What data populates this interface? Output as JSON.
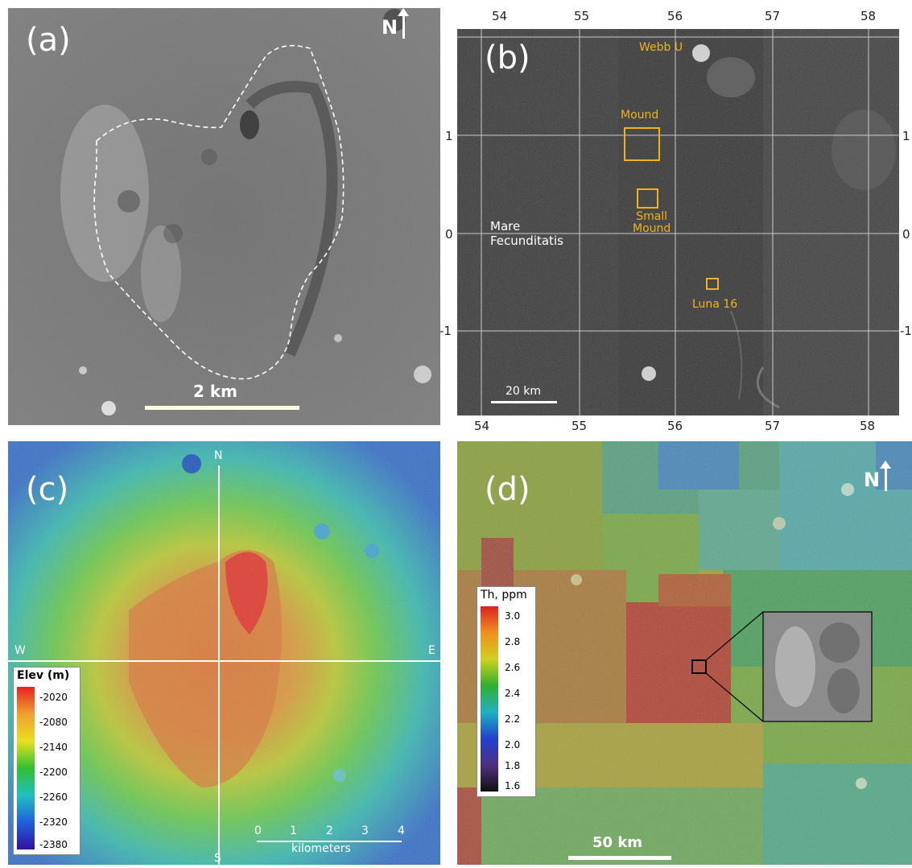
{
  "panel_a": {
    "letter": "(a)",
    "north": "N",
    "scale_label": "2 km",
    "image_kind": "grayscale lunar surface with dashed outline of mound"
  },
  "panel_b": {
    "letter": "(b)",
    "top_ticks": [
      "54",
      "55",
      "56",
      "57",
      "58"
    ],
    "bottom_ticks": [
      "54",
      "55",
      "56",
      "57",
      "58"
    ],
    "left_ticks": [
      "1",
      "0",
      "-1"
    ],
    "right_ticks": [
      "1",
      "0",
      "-1"
    ],
    "labels": {
      "webb": "Webb U",
      "mound": "Mound",
      "small_mound_1": "Small",
      "small_mound_2": "Mound",
      "luna": "Luna 16",
      "mare_1": "Mare",
      "mare_2": "Fecunditatis"
    },
    "scale_label": "20 km"
  },
  "panel_c": {
    "letter": "(c)",
    "dirs": {
      "n": "N",
      "s": "S",
      "w": "W",
      "e": "E"
    },
    "legend_title": "Elev (m)",
    "legend_values": [
      "-2020",
      "-2080",
      "-2140",
      "-2200",
      "-2260",
      "-2320",
      "-2380"
    ],
    "scale_ticks": [
      "0",
      "1",
      "2",
      "3",
      "4"
    ],
    "scale_unit": "kilometers"
  },
  "panel_d": {
    "letter": "(d)",
    "north": "N",
    "legend_title": "Th, ppm",
    "legend_values": [
      "3.0",
      "2.8",
      "2.6",
      "2.4",
      "2.2",
      "2.0",
      "1.8",
      "1.6"
    ],
    "scale_label": "50 km"
  },
  "colors": {
    "gold": "#f2b21d",
    "elev_ramp": [
      "#e82020",
      "#f0a030",
      "#e8e020",
      "#30c030",
      "#20c0c0",
      "#2060e0",
      "#3010a0"
    ],
    "th_ramp": [
      "#e02020",
      "#f09020",
      "#d0d020",
      "#30b030",
      "#20b0c0",
      "#2040d0",
      "#503080",
      "#101010"
    ]
  }
}
